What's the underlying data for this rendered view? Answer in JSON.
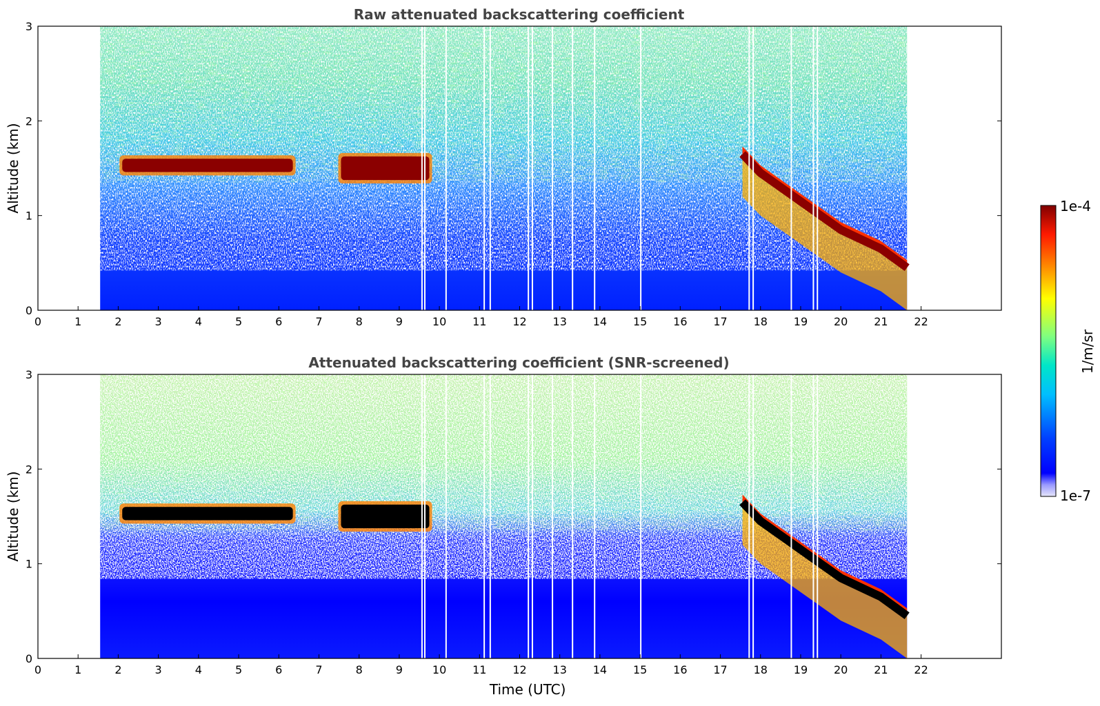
{
  "chart_data": [
    {
      "type": "heatmap",
      "title": "Raw attenuated backscattering coefficient",
      "xlabel": "",
      "ylabel": "Altitude (km)",
      "xlim": [
        0,
        24
      ],
      "ylim": [
        0,
        3
      ],
      "x_ticks": [
        "0",
        "1",
        "2",
        "3",
        "4",
        "5",
        "6",
        "7",
        "8",
        "9",
        "10",
        "11",
        "12",
        "13",
        "14",
        "15",
        "16",
        "17",
        "18",
        "19",
        "20",
        "21",
        "22"
      ],
      "y_ticks": [
        "0",
        "1",
        "2",
        "3"
      ],
      "data_time_range": [
        1.55,
        21.65
      ],
      "gaps": [
        9.55,
        9.62,
        10.15,
        11.1,
        11.25,
        12.2,
        12.3,
        12.8,
        13.3,
        13.85,
        15.0,
        17.7,
        17.8,
        18.75,
        19.3,
        19.4
      ],
      "features": [
        {
          "kind": "cloud-layer",
          "t_start": 2.1,
          "t_end": 6.35,
          "alt_km": 1.53,
          "thickness_km": 0.14
        },
        {
          "kind": "broken-cloud",
          "t_start": 7.55,
          "t_end": 9.75,
          "alt_km": 1.5,
          "thickness_km": 0.25
        },
        {
          "kind": "descending-layer",
          "points": [
            [
              17.55,
              1.65
            ],
            [
              18.0,
              1.45
            ],
            [
              19.0,
              1.15
            ],
            [
              20.0,
              0.85
            ],
            [
              21.0,
              0.65
            ],
            [
              21.65,
              0.45
            ]
          ]
        }
      ],
      "screened": false
    },
    {
      "type": "heatmap",
      "title": "Attenuated backscattering coefficient (SNR-screened)",
      "xlabel": "Time (UTC)",
      "ylabel": "Altitude (km)",
      "xlim": [
        0,
        24
      ],
      "ylim": [
        0,
        3
      ],
      "x_ticks": [
        "0",
        "1",
        "2",
        "3",
        "4",
        "5",
        "6",
        "7",
        "8",
        "9",
        "10",
        "11",
        "12",
        "13",
        "14",
        "15",
        "16",
        "17",
        "18",
        "19",
        "20",
        "21",
        "22"
      ],
      "y_ticks": [
        "0",
        "1",
        "2",
        "3"
      ],
      "data_time_range": [
        1.55,
        21.65
      ],
      "gaps": [
        9.55,
        9.62,
        10.15,
        11.1,
        11.25,
        12.2,
        12.3,
        12.8,
        13.3,
        13.85,
        15.0,
        17.7,
        17.8,
        18.75,
        19.3,
        19.4
      ],
      "features": [
        {
          "kind": "cloud-layer",
          "t_start": 2.1,
          "t_end": 6.35,
          "alt_km": 1.53,
          "thickness_km": 0.14
        },
        {
          "kind": "broken-cloud",
          "t_start": 7.55,
          "t_end": 9.75,
          "alt_km": 1.5,
          "thickness_km": 0.25
        },
        {
          "kind": "descending-layer",
          "points": [
            [
              17.55,
              1.65
            ],
            [
              18.0,
              1.45
            ],
            [
              19.0,
              1.15
            ],
            [
              20.0,
              0.85
            ],
            [
              21.0,
              0.65
            ],
            [
              21.65,
              0.45
            ]
          ]
        }
      ],
      "screened": true
    }
  ],
  "colorbar": {
    "label": "1/m/sr",
    "max_label": "1e-4",
    "min_label": "1e-7",
    "colormap": "jet",
    "scale": "log"
  },
  "colors": {
    "saturated_cloud_raw": "#8b0000",
    "saturated_cloud_screened": "#000000",
    "background": "#ffffff"
  }
}
